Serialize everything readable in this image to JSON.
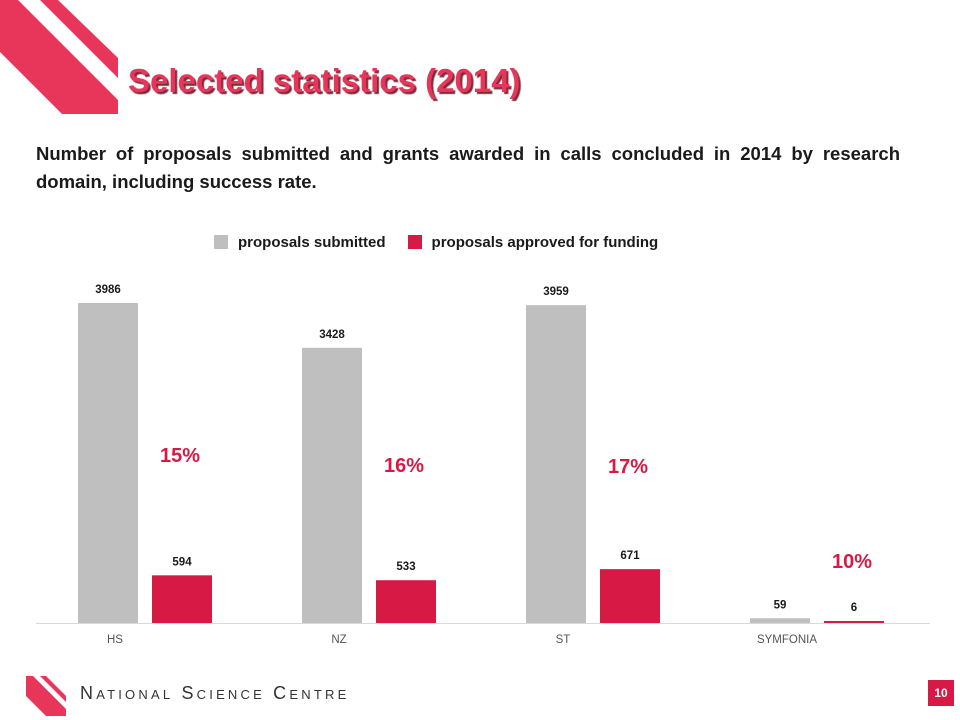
{
  "title": "Selected statistics (2014)",
  "subtitle": "Number of proposals submitted and grants awarded in calls concluded in 2014 by research domain, including success rate.",
  "footer": {
    "organization": "National Science Centre",
    "page_number": "10"
  },
  "colors": {
    "submitted": "#bfbfbf",
    "approved": "#d71a45",
    "brand": "#e8365b"
  },
  "chart_data": {
    "type": "bar",
    "categories": [
      "HS",
      "NZ",
      "ST",
      "SYMFONIA"
    ],
    "series": [
      {
        "name": "proposals submitted",
        "values": [
          3986,
          3428,
          3959,
          59
        ]
      },
      {
        "name": "proposals approved for funding",
        "values": [
          594,
          533,
          671,
          6
        ]
      }
    ],
    "success_rates": [
      "15%",
      "16%",
      "17%",
      "10%"
    ],
    "legend_position": "top",
    "grid": false
  }
}
